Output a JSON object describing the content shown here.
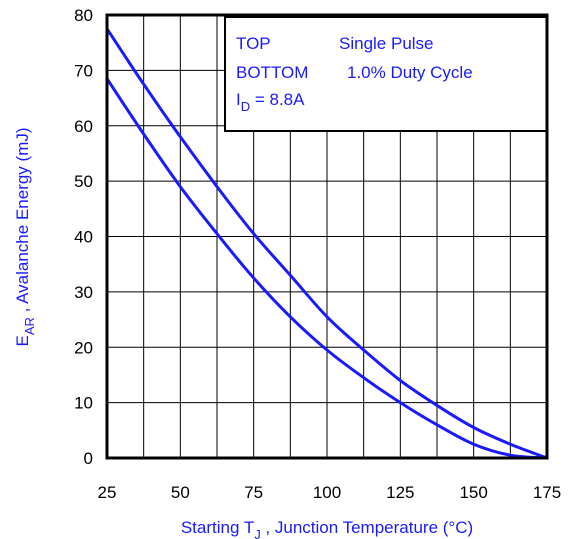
{
  "chart_data": {
    "type": "line",
    "xlabel": {
      "prefix": "Starting T",
      "sub": "J",
      "suffix": " , Junction Temperature (°C)"
    },
    "ylabel": {
      "prefix": "E",
      "sub": "AR",
      "suffix": " , Avalanche Energy (mJ)"
    },
    "xlim": [
      25,
      175
    ],
    "ylim": [
      0,
      80
    ],
    "xticks": [
      25,
      50,
      75,
      100,
      125,
      150,
      175
    ],
    "yticks": [
      0,
      10,
      20,
      30,
      40,
      50,
      60,
      70,
      80
    ],
    "grid": true,
    "legend": {
      "placement": "top-right",
      "lines": [
        {
          "left": "TOP",
          "right": "Single Pulse"
        },
        {
          "left": "BOTTOM",
          "right": "1.0% Duty Cycle"
        }
      ],
      "condition": {
        "prefix": "I",
        "sub": "D",
        "suffix": " = 8.8A"
      }
    },
    "series": [
      {
        "x": [
          25,
          37.5,
          50,
          62.5,
          75,
          87.5,
          100,
          112.5,
          125,
          137.5,
          150,
          162.5,
          175
        ],
        "values": [
          77.5,
          67.5,
          58,
          49,
          40.5,
          33,
          25.5,
          19.5,
          14,
          9.5,
          5.5,
          2.5,
          0
        ]
      },
      {
        "x": [
          25,
          37.5,
          50,
          62.5,
          75,
          87.5,
          100,
          112.5,
          125,
          137.5,
          150,
          162.5,
          175
        ],
        "values": [
          68.5,
          58.5,
          49,
          40.5,
          32.5,
          25.5,
          19.5,
          14.5,
          10,
          6,
          2.5,
          0.5,
          0
        ]
      }
    ],
    "colors": {
      "curve": "#1a1aff",
      "grid": "#000000",
      "label": "#1a1aff"
    }
  }
}
